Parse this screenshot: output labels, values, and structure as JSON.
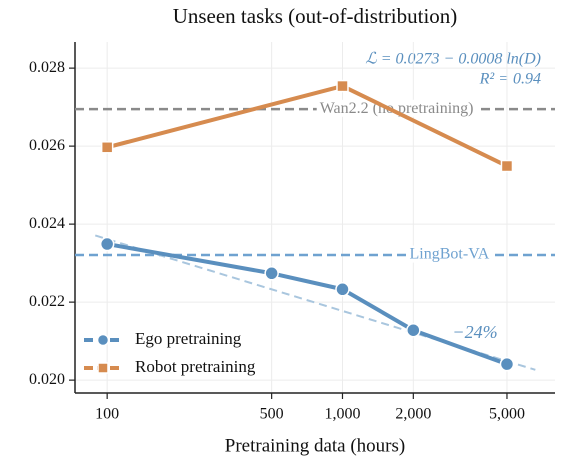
{
  "chart_data": {
    "type": "line",
    "title": "Unseen tasks (out-of-distribution)",
    "x_label": "Pretraining data (hours)",
    "xscale": "log",
    "grid": true,
    "legend": "lower left",
    "xlim": [
      73,
      8000
    ],
    "xticks": [
      100,
      500,
      {
        "value": 1000,
        "label": "1,000"
      },
      {
        "value": 2000,
        "label": "2,000"
      },
      {
        "value": 5000,
        "label": "5,000"
      }
    ],
    "ylim": [
      0.01967,
      0.02867
    ],
    "yticks": [
      {
        "value": 0.02,
        "label": "0.020"
      },
      0.022,
      0.024,
      0.026,
      0.028
    ],
    "series": [
      {
        "name": "Ego pretraining",
        "color": "#5a8fbe",
        "marker": "circle",
        "x": [
          100,
          500,
          1000,
          2000,
          5000
        ],
        "values": [
          0.02349,
          0.02274,
          0.02233,
          0.02128,
          0.02041
        ]
      },
      {
        "name": "Robot pretraining",
        "color": "#d68b4f",
        "marker": "square",
        "x": [
          100,
          1000,
          5000
        ],
        "values": [
          0.02597,
          0.02754,
          0.02549
        ]
      }
    ],
    "reference_lines": [
      {
        "label": "Wan2.2 (no pretraining)",
        "value": 0.02695,
        "color": "#8a8a8a"
      },
      {
        "label": "LingBot-VA",
        "value": 0.02321,
        "color": "#6fa2d0"
      }
    ],
    "fit": {
      "intercept": 0.0273,
      "slope": -0.0008,
      "x_range": [
        89,
        6600
      ],
      "color": "#a9c6de",
      "equation": "ℒ = 0.0273 − 0.0008 ln(D)",
      "r2": "R² = 0.94",
      "annotation": "−24%"
    }
  }
}
